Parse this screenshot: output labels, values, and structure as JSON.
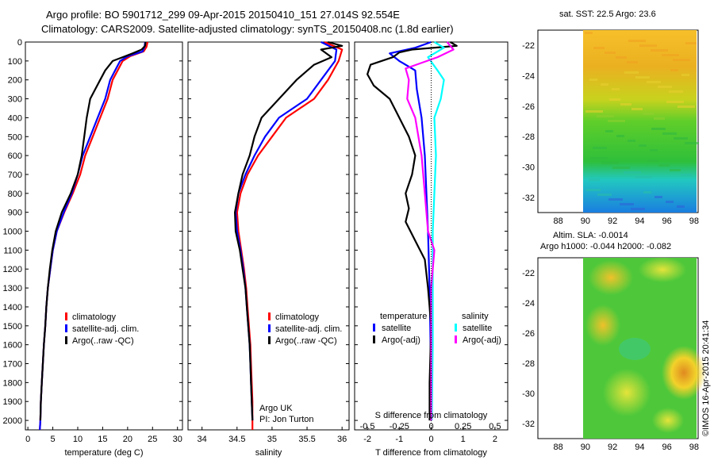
{
  "header": {
    "line1": "Argo profile: BO 5901712_299 09-Apr-2015 20150410_151 27.014S 92.554E",
    "line2": "Climatology: CARS2009. Satellite-adjusted climatology: synTS_20150408.nc (1.8d earlier)"
  },
  "colors": {
    "climatology": "#ff0000",
    "satellite": "#0000ff",
    "argo": "#000000",
    "salinity_satellite": "#00ffff",
    "salinity_argo": "#ff00ff"
  },
  "depth_ticks": [
    0,
    100,
    200,
    300,
    400,
    500,
    600,
    700,
    800,
    900,
    1000,
    1100,
    1200,
    1300,
    1400,
    1500,
    1600,
    1700,
    1800,
    1900,
    2000
  ],
  "panels": {
    "temperature": {
      "xlabel": "temperature (deg C)",
      "ticks": [
        "0",
        "5",
        "10",
        "15",
        "20",
        "25",
        "30"
      ],
      "legend": [
        "climatology",
        "satellite-adj. clim.",
        "Argo(..raw -QC)"
      ]
    },
    "salinity": {
      "xlabel": "salinity",
      "ticks": [
        "34",
        "34.5",
        "35",
        "35.5",
        "36"
      ],
      "legend": [
        "climatology",
        "satellite-adj. clim.",
        "Argo(..raw -QC)"
      ],
      "note1": "Argo UK",
      "note2": "PI: Jon Turton"
    },
    "difference": {
      "xlabel": "T difference from climatology",
      "top_label": "S difference from climatology",
      "ticks": [
        "-2",
        "-1",
        "0",
        "1",
        "2"
      ],
      "sticks": [
        "-0.5",
        "-0.25",
        "0",
        "0.25",
        "0.5"
      ],
      "legend_temp_title": "temperature",
      "legend_sal_title": "salinity",
      "legend_temp": [
        "satellite",
        "Argo(-adj)"
      ],
      "legend_sal": [
        "satellite",
        "Argo(-adj)"
      ]
    }
  },
  "maps": {
    "sst_title": "sat. SST: 22.5  Argo: 23.6",
    "sla_title1": "Altim. SLA: -0.0014",
    "sla_title2": "Argo h1000: -0.044 h2000: -0.082",
    "lat_ticks": [
      "-22",
      "-24",
      "-26",
      "-28",
      "-30",
      "-32"
    ],
    "lon_ticks": [
      "88",
      "90",
      "92",
      "94",
      "96",
      "98"
    ],
    "credit": "©IMOS 16-Apr-2015 20:41:34"
  },
  "chart_data": [
    {
      "type": "line",
      "panel": "temperature",
      "xlabel": "temperature (deg C)",
      "xlim": [
        0,
        31
      ],
      "ylim": [
        2050,
        0
      ],
      "series": [
        {
          "name": "climatology",
          "color": "#ff0000",
          "points": [
            [
              24,
              0
            ],
            [
              23.8,
              25
            ],
            [
              23.2,
              50
            ],
            [
              20.5,
              75
            ],
            [
              19,
              100
            ],
            [
              18,
              150
            ],
            [
              17,
              200
            ],
            [
              16,
              300
            ],
            [
              14.5,
              400
            ],
            [
              13,
              500
            ],
            [
              11.5,
              600
            ],
            [
              10.5,
              700
            ],
            [
              9,
              800
            ],
            [
              7.3,
              900
            ],
            [
              5.8,
              1000
            ],
            [
              5,
              1100
            ],
            [
              4.5,
              1200
            ],
            [
              4,
              1300
            ],
            [
              3.7,
              1400
            ],
            [
              3.5,
              1500
            ],
            [
              3.2,
              1600
            ],
            [
              3,
              1700
            ],
            [
              2.8,
              1800
            ],
            [
              2.6,
              1900
            ],
            [
              2.5,
              2000
            ],
            [
              2.4,
              2050
            ]
          ]
        },
        {
          "name": "satellite-adj. clim.",
          "color": "#0000ff",
          "points": [
            [
              23.5,
              0
            ],
            [
              23.4,
              25
            ],
            [
              23,
              50
            ],
            [
              20,
              75
            ],
            [
              18.5,
              100
            ],
            [
              17.5,
              150
            ],
            [
              16.5,
              200
            ],
            [
              15.5,
              300
            ],
            [
              14,
              400
            ],
            [
              12.5,
              500
            ],
            [
              11,
              600
            ],
            [
              10,
              700
            ],
            [
              8.8,
              800
            ],
            [
              7.2,
              900
            ],
            [
              5.8,
              1000
            ],
            [
              5,
              1100
            ],
            [
              4.5,
              1200
            ],
            [
              4,
              1300
            ],
            [
              3.7,
              1400
            ],
            [
              3.5,
              1500
            ],
            [
              3.2,
              1600
            ],
            [
              3,
              1700
            ],
            [
              2.8,
              1800
            ],
            [
              2.6,
              1900
            ],
            [
              2.5,
              2000
            ],
            [
              2.4,
              2050
            ]
          ]
        },
        {
          "name": "Argo(..raw -QC)",
          "color": "#000000",
          "points": [
            [
              23.6,
              0
            ],
            [
              23.5,
              20
            ],
            [
              22.8,
              40
            ],
            [
              21,
              60
            ],
            [
              19,
              80
            ],
            [
              17,
              100
            ],
            [
              15.5,
              150
            ],
            [
              14.5,
              200
            ],
            [
              13.5,
              250
            ],
            [
              12.5,
              300
            ],
            [
              11.8,
              400
            ],
            [
              11.3,
              500
            ],
            [
              10.8,
              600
            ],
            [
              10,
              700
            ],
            [
              8.6,
              800
            ],
            [
              6.8,
              900
            ],
            [
              5.6,
              1000
            ],
            [
              4.9,
              1100
            ],
            [
              4.4,
              1200
            ],
            [
              4,
              1300
            ],
            [
              3.7,
              1400
            ],
            [
              3.5,
              1500
            ],
            [
              3.2,
              1600
            ],
            [
              3,
              1700
            ],
            [
              2.8,
              1800
            ],
            [
              2.6,
              1900
            ],
            [
              2.5,
              2000
            ]
          ]
        }
      ]
    },
    {
      "type": "line",
      "panel": "salinity",
      "xlabel": "salinity",
      "xlim": [
        33.8,
        36.1
      ],
      "ylim": [
        2050,
        0
      ],
      "series": [
        {
          "name": "climatology",
          "color": "#ff0000",
          "points": [
            [
              35.75,
              0
            ],
            [
              36.0,
              40
            ],
            [
              35.95,
              100
            ],
            [
              35.8,
              200
            ],
            [
              35.6,
              300
            ],
            [
              35.2,
              400
            ],
            [
              35.0,
              500
            ],
            [
              34.8,
              600
            ],
            [
              34.65,
              700
            ],
            [
              34.55,
              800
            ],
            [
              34.5,
              900
            ],
            [
              34.52,
              1000
            ],
            [
              34.56,
              1100
            ],
            [
              34.6,
              1200
            ],
            [
              34.63,
              1300
            ],
            [
              34.65,
              1400
            ],
            [
              34.67,
              1500
            ],
            [
              34.69,
              1600
            ],
            [
              34.7,
              1700
            ],
            [
              34.71,
              1800
            ],
            [
              34.72,
              1900
            ],
            [
              34.72,
              2000
            ],
            [
              34.72,
              2050
            ]
          ]
        },
        {
          "name": "satellite-adj. clim.",
          "color": "#0000ff",
          "points": [
            [
              35.7,
              0
            ],
            [
              35.92,
              40
            ],
            [
              35.9,
              100
            ],
            [
              35.7,
              200
            ],
            [
              35.5,
              300
            ],
            [
              35.1,
              400
            ],
            [
              34.9,
              500
            ],
            [
              34.75,
              600
            ],
            [
              34.62,
              700
            ],
            [
              34.52,
              800
            ],
            [
              34.48,
              900
            ],
            [
              34.5,
              1000
            ],
            [
              34.55,
              1100
            ],
            [
              34.59,
              1200
            ],
            [
              34.62,
              1300
            ],
            [
              34.64,
              1400
            ],
            [
              34.66,
              1500
            ],
            [
              34.68,
              1600
            ],
            [
              34.69,
              1700
            ],
            [
              34.7,
              1800
            ],
            [
              34.71,
              1900
            ],
            [
              34.72,
              2000
            ]
          ]
        },
        {
          "name": "Argo(..raw -QC)",
          "color": "#000000",
          "points": [
            [
              35.8,
              0
            ],
            [
              36.0,
              20
            ],
            [
              35.7,
              40
            ],
            [
              35.85,
              80
            ],
            [
              35.6,
              120
            ],
            [
              35.35,
              200
            ],
            [
              35.1,
              300
            ],
            [
              34.85,
              400
            ],
            [
              34.75,
              500
            ],
            [
              34.68,
              600
            ],
            [
              34.58,
              700
            ],
            [
              34.52,
              800
            ],
            [
              34.47,
              900
            ],
            [
              34.48,
              1000
            ],
            [
              34.54,
              1100
            ],
            [
              34.58,
              1200
            ],
            [
              34.62,
              1300
            ],
            [
              34.64,
              1400
            ],
            [
              34.66,
              1500
            ],
            [
              34.68,
              1600
            ],
            [
              34.69,
              1700
            ],
            [
              34.7,
              1800
            ],
            [
              34.71,
              1900
            ],
            [
              34.72,
              2000
            ]
          ]
        }
      ]
    },
    {
      "type": "line",
      "panel": "difference",
      "xlabel": "T difference from climatology",
      "xlim": [
        -2.4,
        2.4
      ],
      "ylim": [
        2050,
        0
      ],
      "series": [
        {
          "name": "temperature satellite",
          "color": "#0000ff",
          "points": [
            [
              0,
              0
            ],
            [
              -0.5,
              30
            ],
            [
              -1.3,
              60
            ],
            [
              -1.0,
              100
            ],
            [
              -0.5,
              150
            ],
            [
              -0.45,
              250
            ],
            [
              -0.3,
              400
            ],
            [
              -0.2,
              600
            ],
            [
              -0.15,
              800
            ],
            [
              -0.1,
              1000
            ],
            [
              -0.05,
              1300
            ],
            [
              -0.02,
              1600
            ],
            [
              0,
              2000
            ]
          ]
        },
        {
          "name": "temperature Argo(-adj)",
          "color": "#000000",
          "points": [
            [
              0.6,
              0
            ],
            [
              0.8,
              20
            ],
            [
              -0.6,
              40
            ],
            [
              -1.0,
              55
            ],
            [
              -1.2,
              80
            ],
            [
              -1.9,
              120
            ],
            [
              -2.0,
              170
            ],
            [
              -1.8,
              230
            ],
            [
              -1.3,
              300
            ],
            [
              -1.0,
              400
            ],
            [
              -0.7,
              500
            ],
            [
              -0.5,
              600
            ],
            [
              -0.6,
              700
            ],
            [
              -0.8,
              800
            ],
            [
              -0.7,
              880
            ],
            [
              -0.8,
              950
            ],
            [
              -0.5,
              1050
            ],
            [
              -0.2,
              1150
            ],
            [
              -0.1,
              1300
            ],
            [
              0,
              1500
            ],
            [
              -0.05,
              1800
            ],
            [
              -0.05,
              2000
            ]
          ]
        },
        {
          "name": "salinity satellite",
          "color": "#00ffff",
          "points": [
            [
              0.1,
              0
            ],
            [
              0.4,
              30
            ],
            [
              -0.1,
              80
            ],
            [
              0.2,
              150
            ],
            [
              0.4,
              200
            ],
            [
              0.3,
              300
            ],
            [
              0.1,
              400
            ],
            [
              0.15,
              600
            ],
            [
              0.1,
              800
            ],
            [
              0.05,
              1000
            ],
            [
              0.05,
              1300
            ],
            [
              0.05,
              1600
            ],
            [
              0.02,
              2000
            ]
          ]
        },
        {
          "name": "salinity Argo(-adj)",
          "color": "#ff00ff",
          "points": [
            [
              0.5,
              0
            ],
            [
              0.7,
              40
            ],
            [
              0.2,
              80
            ],
            [
              -0.8,
              140
            ],
            [
              -0.7,
              200
            ],
            [
              -0.75,
              300
            ],
            [
              -0.5,
              400
            ],
            [
              -0.3,
              600
            ],
            [
              -0.2,
              800
            ],
            [
              -0.1,
              1000
            ],
            [
              0.1,
              1100
            ],
            [
              0,
              1300
            ],
            [
              0,
              1600
            ],
            [
              0,
              2000
            ]
          ]
        }
      ]
    },
    {
      "type": "heatmap",
      "panel": "sst_map",
      "title": "sat. SST: 22.5  Argo: 23.6",
      "xlim": [
        86.5,
        98.3
      ],
      "ylim": [
        -33,
        -21
      ]
    },
    {
      "type": "heatmap",
      "panel": "sla_map",
      "title": "Altim. SLA: -0.0014",
      "xlim": [
        86.5,
        98.3
      ],
      "ylim": [
        -33,
        -21
      ]
    }
  ]
}
